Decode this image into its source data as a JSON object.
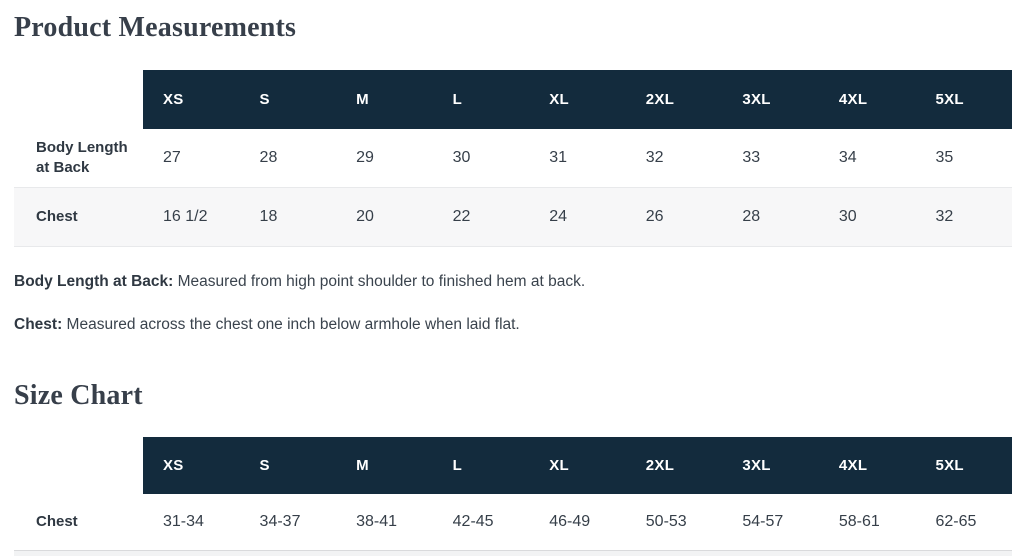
{
  "colors": {
    "header_bg": "#132b3d",
    "header_text": "#ffffff",
    "alt_row_bg": "#f7f7f8",
    "divider": "#e8e9eb",
    "body_text": "#333d47"
  },
  "product_measurements": {
    "title": "Product Measurements",
    "sizes": [
      "XS",
      "S",
      "M",
      "L",
      "XL",
      "2XL",
      "3XL",
      "4XL",
      "5XL"
    ],
    "rows": [
      {
        "label": "Body Length at Back",
        "values": [
          "27",
          "28",
          "29",
          "30",
          "31",
          "32",
          "33",
          "34",
          "35"
        ]
      },
      {
        "label": "Chest",
        "values": [
          "16 1/2",
          "18",
          "20",
          "22",
          "24",
          "26",
          "28",
          "30",
          "32"
        ]
      }
    ],
    "notes": [
      {
        "label": "Body Length at Back:",
        "text": "Measured from high point shoulder to finished hem at back."
      },
      {
        "label": "Chest:",
        "text": "Measured across the chest one inch below armhole when laid flat."
      }
    ]
  },
  "size_chart": {
    "title": "Size Chart",
    "sizes": [
      "XS",
      "S",
      "M",
      "L",
      "XL",
      "2XL",
      "3XL",
      "4XL",
      "5XL"
    ],
    "rows": [
      {
        "label": "Chest",
        "values": [
          "31-34",
          "34-37",
          "38-41",
          "42-45",
          "46-49",
          "50-53",
          "54-57",
          "58-61",
          "62-65"
        ]
      }
    ]
  }
}
